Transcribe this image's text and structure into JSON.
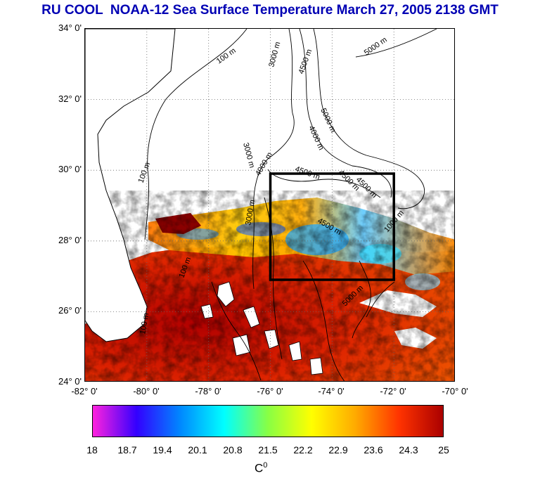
{
  "title": "RU COOL  NOAA-12 Sea Surface Temperature March 27, 2005 2138 GMT",
  "lat_labels": [
    "34° 0'",
    "32° 0'",
    "30° 0'",
    "28° 0'",
    "26° 0'",
    "24° 0'"
  ],
  "lon_labels": [
    "-82° 0'",
    "-80° 0'",
    "-78° 0'",
    "-76° 0'",
    "-74° 0'",
    "-72° 0'",
    "-70° 0'"
  ],
  "contour_labels": [
    "100 m",
    "3000 m",
    "4500 m",
    "5000 m",
    "5000 m",
    "4000 m",
    "3000 m",
    "4000 m",
    "100 m",
    "4500 m",
    "4500 m",
    "4500 m",
    "3000 m",
    "4500 m",
    "1000 m",
    "5000 m",
    "100 m",
    "100 m"
  ],
  "colorbar": {
    "ticks": [
      "18",
      "18.7",
      "19.4",
      "20.1",
      "20.8",
      "21.5",
      "22.2",
      "22.9",
      "23.6",
      "24.3",
      "25"
    ],
    "unit_base": "C",
    "unit_sup": "0",
    "colors": [
      "#ff22dd",
      "#3300ff",
      "#0088ff",
      "#00ffff",
      "#88ff44",
      "#ffff00",
      "#ffaa00",
      "#ff3300",
      "#aa0000"
    ]
  },
  "colors": {
    "title": "#0000b4",
    "box": "#000000",
    "land": "#ffffff",
    "ocean_no_data": "#ffffff"
  }
}
